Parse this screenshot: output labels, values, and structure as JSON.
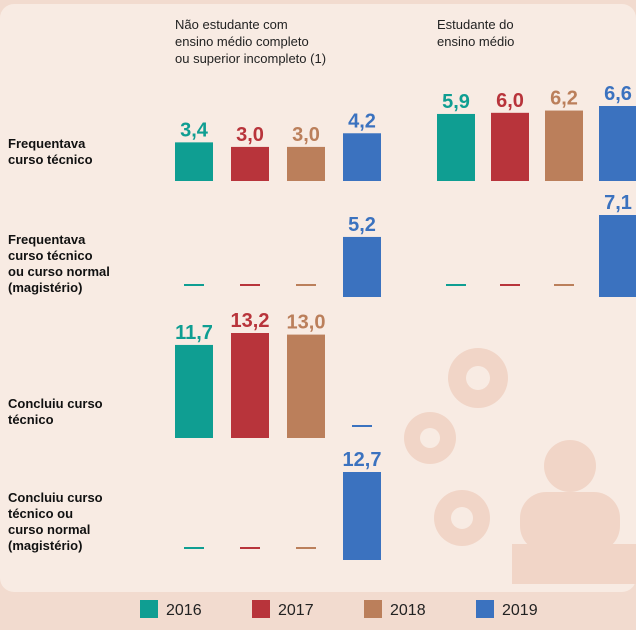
{
  "chart_data": {
    "type": "bar",
    "groups": [
      "Não estudante com\nensino médio completo\nou superior incompleto (1)",
      "Estudante do\nensino médio"
    ],
    "categories": [
      "Frequentava\ncurso técnico",
      "Frequentava\ncurso técnico\nou curso normal\n(magistério)",
      "Concluiu curso\ntécnico",
      "Concluiu curso\ntécnico ou\ncurso normal\n(magistério)"
    ],
    "series": [
      {
        "name": "2016",
        "color": "#0f9e92",
        "values": [
          [
            3.4,
            5.9
          ],
          [
            null,
            null
          ],
          [
            11.7,
            null
          ],
          [
            null,
            null
          ]
        ],
        "value_labels": [
          [
            "3,4",
            "5,9"
          ],
          [
            null,
            null
          ],
          [
            "11,7",
            null
          ],
          [
            null,
            null
          ]
        ]
      },
      {
        "name": "2017",
        "color": "#b8343b",
        "values": [
          [
            3.0,
            6.0
          ],
          [
            null,
            null
          ],
          [
            13.2,
            null
          ],
          [
            null,
            null
          ]
        ],
        "value_labels": [
          [
            "3,0",
            "6,0"
          ],
          [
            null,
            null
          ],
          [
            "13,2",
            null
          ],
          [
            null,
            null
          ]
        ]
      },
      {
        "name": "2018",
        "color": "#bb7f5b",
        "values": [
          [
            3.0,
            6.2
          ],
          [
            null,
            null
          ],
          [
            13.0,
            null
          ],
          [
            null,
            null
          ]
        ],
        "value_labels": [
          [
            "3,0",
            "6,2"
          ],
          [
            null,
            null
          ],
          [
            "13,0",
            null
          ],
          [
            null,
            null
          ]
        ]
      },
      {
        "name": "2019",
        "color": "#3b72bf",
        "values": [
          [
            4.2,
            6.6
          ],
          [
            5.2,
            7.1
          ],
          [
            null,
            null
          ],
          [
            12.7,
            null
          ]
        ],
        "value_labels": [
          [
            "4,2",
            "6,6"
          ],
          [
            "5,2",
            "7,1"
          ],
          [
            null,
            null
          ],
          [
            "12,7",
            null
          ]
        ]
      }
    ]
  }
}
